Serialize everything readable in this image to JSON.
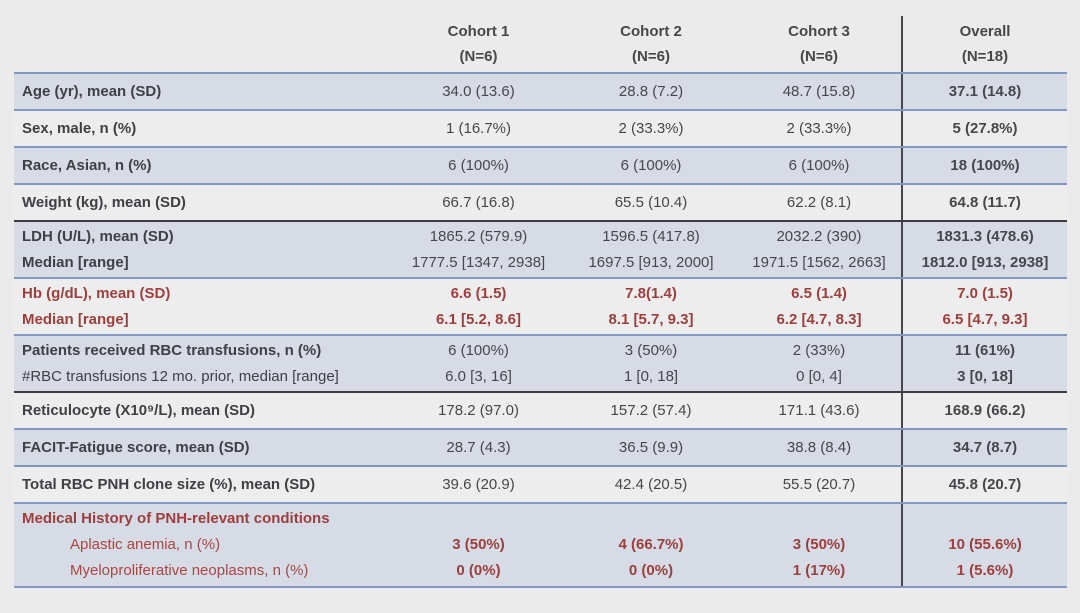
{
  "colors": {
    "band_blue_gray": "#d6dbe5",
    "band_light": "#ededee",
    "separator_blue": "#8199c1",
    "separator_dark": "#3d3d41",
    "red_text": "#9d3f3c"
  },
  "table": {
    "columns": [
      {
        "label": "Cohort 1",
        "sub": "(N=6)"
      },
      {
        "label": "Cohort 2",
        "sub": "(N=6)"
      },
      {
        "label": "Cohort 3",
        "sub": "(N=6)"
      },
      {
        "label": "Overall",
        "sub": "(N=18)"
      }
    ],
    "rows": [
      {
        "label": [
          "Age (yr), mean (SD)"
        ],
        "values": [
          [
            "34.0 (13.6)"
          ],
          [
            "28.8 (7.2)"
          ],
          [
            "48.7 (15.8)"
          ],
          [
            "37.1 (14.8)"
          ]
        ]
      },
      {
        "label": [
          "Sex, male, n (%)"
        ],
        "values": [
          [
            "1 (16.7%)"
          ],
          [
            "2 (33.3%)"
          ],
          [
            "2 (33.3%)"
          ],
          [
            "5 (27.8%)"
          ]
        ]
      },
      {
        "label": [
          "Race, Asian, n (%)"
        ],
        "values": [
          [
            "6 (100%)"
          ],
          [
            "6 (100%)"
          ],
          [
            "6 (100%)"
          ],
          [
            "18 (100%)"
          ]
        ]
      },
      {
        "label": [
          "Weight (kg), mean (SD)"
        ],
        "values": [
          [
            "66.7 (16.8)"
          ],
          [
            "65.5 (10.4)"
          ],
          [
            "62.2 (8.1)"
          ],
          [
            "64.8 (11.7)"
          ]
        ]
      },
      {
        "label": [
          "LDH (U/L), mean (SD)",
          "Median [range]"
        ],
        "values": [
          [
            "1865.2 (579.9)",
            "1777.5 [1347, 2938]"
          ],
          [
            "1596.5 (417.8)",
            "1697.5 [913, 2000]"
          ],
          [
            "2032.2 (390)",
            "1971.5 [1562, 2663]"
          ],
          [
            "1831.3 (478.6)",
            "1812.0 [913, 2938]"
          ]
        ]
      },
      {
        "label": [
          "Hb (g/dL), mean (SD)",
          "Median [range]"
        ],
        "values": [
          [
            "6.6 (1.5)",
            "6.1 [5.2, 8.6]"
          ],
          [
            "7.8(1.4)",
            "8.1 [5.7, 9.3]"
          ],
          [
            "6.5 (1.4)",
            "6.2 [4.7, 8.3]"
          ],
          [
            "7.0 (1.5)",
            "6.5 [4.7, 9.3]"
          ]
        ]
      },
      {
        "label": [
          "Patients received RBC transfusions, n (%)",
          "#RBC transfusions 12 mo. prior, median [range]"
        ],
        "values": [
          [
            "6 (100%)",
            "6.0 [3, 16]"
          ],
          [
            "3 (50%)",
            "1 [0, 18]"
          ],
          [
            "2 (33%)",
            "0 [0, 4]"
          ],
          [
            "11 (61%)",
            "3 [0, 18]"
          ]
        ]
      },
      {
        "label": [
          "Reticulocyte (X10⁹/L), mean (SD)"
        ],
        "values": [
          [
            "178.2 (97.0)"
          ],
          [
            "157.2 (57.4)"
          ],
          [
            "171.1 (43.6)"
          ],
          [
            "168.9 (66.2)"
          ]
        ]
      },
      {
        "label": [
          "FACIT-Fatigue score, mean (SD)"
        ],
        "values": [
          [
            "28.7 (4.3)"
          ],
          [
            "36.5 (9.9)"
          ],
          [
            "38.8 (8.4)"
          ],
          [
            "34.7 (8.7)"
          ]
        ]
      },
      {
        "label": [
          "Total RBC PNH clone size (%), mean (SD)"
        ],
        "values": [
          [
            "39.6 (20.9)"
          ],
          [
            "42.4 (20.5)"
          ],
          [
            "55.5 (20.7)"
          ],
          [
            "45.8 (20.7)"
          ]
        ]
      },
      {
        "label": [
          "Medical History of PNH-relevant conditions",
          "Aplastic anemia, n (%)",
          "Myeloproliferative neoplasms, n (%)"
        ],
        "values": [
          [
            "3 (50%)",
            "0 (0%)"
          ],
          [
            "4 (66.7%)",
            "0 (0%)"
          ],
          [
            "3 (50%)",
            "1 (17%)"
          ],
          [
            "10 (55.6%)",
            "1 (5.6%)"
          ]
        ]
      }
    ]
  }
}
